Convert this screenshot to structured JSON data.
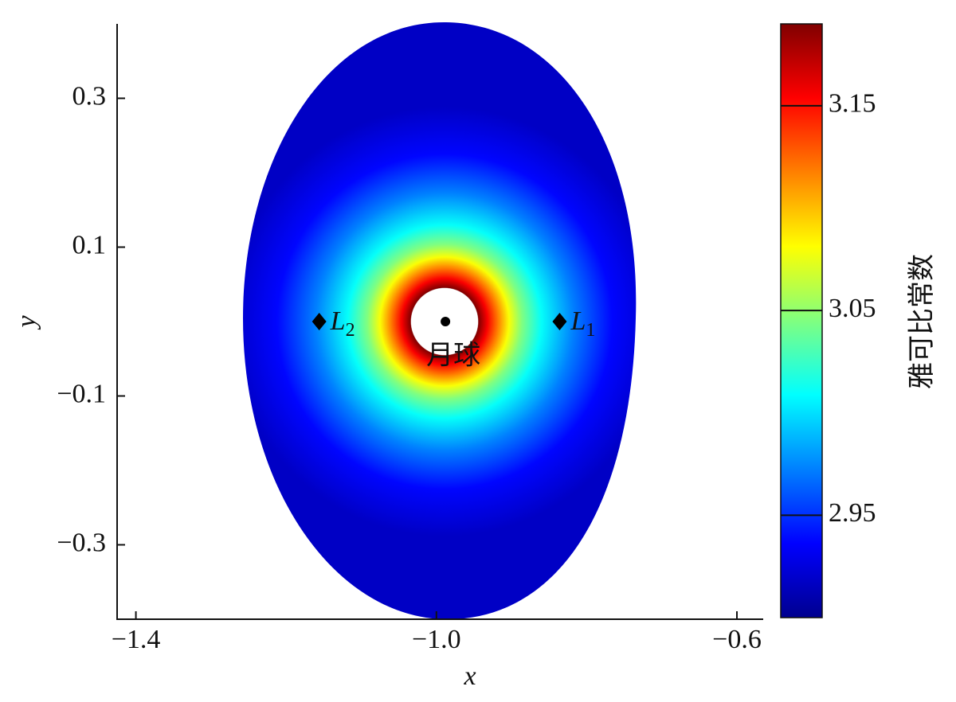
{
  "chart_data": {
    "type": "heatmap",
    "xlabel": "x",
    "ylabel": "y",
    "xlim": [
      -1.425,
      -0.565
    ],
    "ylim": [
      -0.4,
      0.4
    ],
    "xticks": [
      {
        "value": -1.4,
        "label": "−1.4"
      },
      {
        "value": -1.0,
        "label": "−1.0"
      },
      {
        "value": -0.6,
        "label": "−0.6"
      }
    ],
    "yticks": [
      0.3,
      0.1,
      {
        "value": -0.1,
        "label": "−0.1"
      },
      {
        "value": -0.3,
        "label": "−0.3"
      }
    ],
    "colorbar": {
      "label": "雅可比常数",
      "clim": [
        2.9,
        3.19
      ],
      "ticks": [
        3.15,
        3.05,
        2.95
      ]
    },
    "colormap": [
      "#00008f",
      "#0000ff",
      "#0080ff",
      "#00ffff",
      "#80ff80",
      "#ffff00",
      "#ff8000",
      "#ff0000",
      "#800000"
    ],
    "annotations": [
      {
        "label": "L",
        "subscript": "2",
        "x": -1.156,
        "y": 0,
        "marker": "diamond"
      },
      {
        "label": "L",
        "subscript": "1",
        "x": -0.836,
        "y": 0,
        "marker": "diamond"
      },
      {
        "label": "月球",
        "x": -0.988,
        "y": 0,
        "marker": "dot"
      }
    ]
  }
}
